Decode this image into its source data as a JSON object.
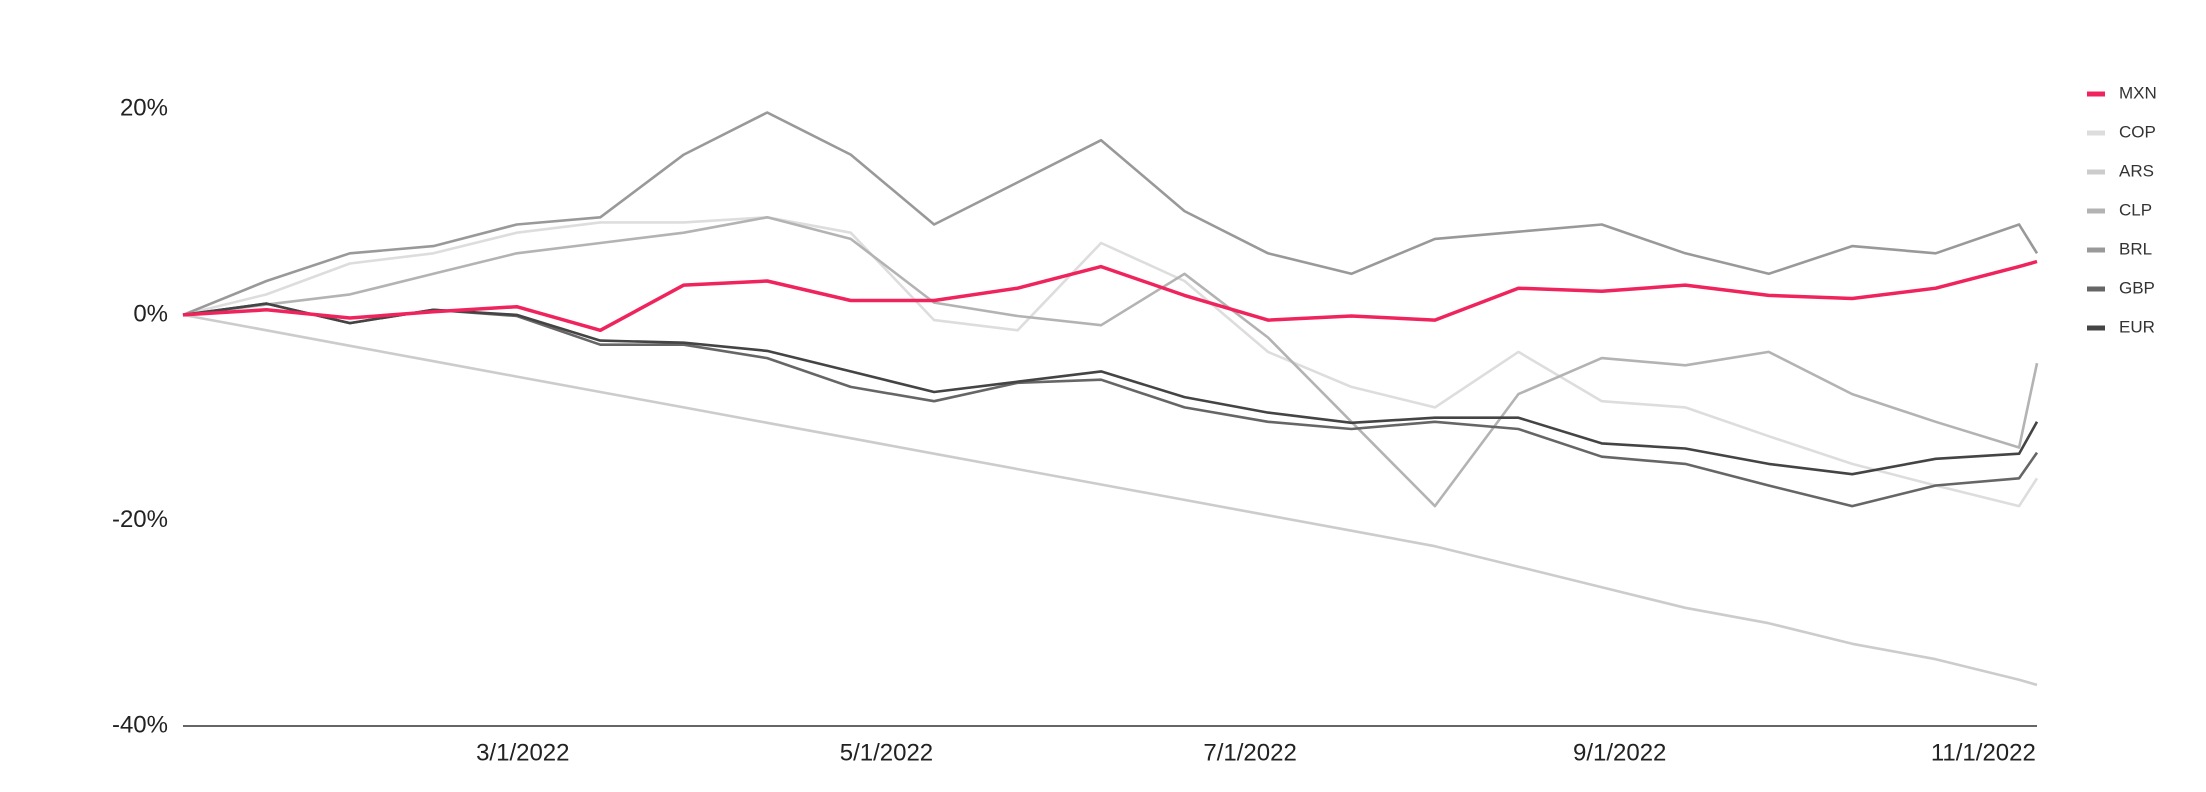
{
  "chart_data": {
    "type": "line",
    "x": [
      "1/3/2022",
      "1/17/2022",
      "1/31/2022",
      "2/14/2022",
      "2/28/2022",
      "3/14/2022",
      "3/28/2022",
      "4/11/2022",
      "4/25/2022",
      "5/9/2022",
      "5/23/2022",
      "6/6/2022",
      "6/20/2022",
      "7/4/2022",
      "7/18/2022",
      "8/1/2022",
      "8/15/2022",
      "8/29/2022",
      "9/12/2022",
      "9/26/2022",
      "10/10/2022",
      "10/24/2022",
      "11/7/2022",
      "11/10/2022"
    ],
    "xlim": [
      "1/3/2022",
      "11/10/2022"
    ],
    "xticks": [
      "3/1/2022",
      "5/1/2022",
      "7/1/2022",
      "9/1/2022",
      "11/1/2022"
    ],
    "ylim": [
      -40,
      25
    ],
    "yticks": [
      {
        "value": -40,
        "label": "-40%"
      },
      {
        "value": -20,
        "label": "-20%"
      },
      {
        "value": 0,
        "label": "0%"
      },
      {
        "value": 20,
        "label": "20%"
      }
    ],
    "grid": false,
    "legend": "right",
    "series": [
      {
        "name": "MXN",
        "color": "#f0245c",
        "values": [
          0,
          0.5,
          -0.3,
          0.3,
          0.8,
          -1.5,
          2.9,
          3.3,
          1.4,
          1.4,
          2.6,
          4.7,
          1.9,
          -0.5,
          -0.1,
          -0.5,
          2.6,
          2.3,
          2.9,
          1.9,
          1.6,
          2.6,
          4.7,
          5.2
        ]
      },
      {
        "name": "COP",
        "color": "#dddddd",
        "values": [
          0,
          2,
          5,
          6,
          8,
          9,
          9,
          9.5,
          8,
          -0.5,
          -1.5,
          7,
          3.3,
          -3.6,
          -7,
          -9,
          -3.6,
          -8.4,
          -9,
          -11.8,
          -14.5,
          -16.6,
          -18.6,
          -15.9
        ]
      },
      {
        "name": "ARS",
        "color": "#cccccc",
        "values": [
          0,
          -1.5,
          -3,
          -4.5,
          -6,
          -7.5,
          -9,
          -10.5,
          -12,
          -13.5,
          -15,
          -16.5,
          -18,
          -19.5,
          -21,
          -22.5,
          -24.5,
          -26.5,
          -28.5,
          -30,
          -32,
          -33.5,
          -35.5,
          -36
        ]
      },
      {
        "name": "CLP",
        "color": "#b3b3b3",
        "values": [
          0,
          1,
          2,
          4,
          6,
          7,
          8,
          9.5,
          7.4,
          1.2,
          -0.1,
          -1,
          4,
          -2.2,
          -10.4,
          -18.6,
          -7.7,
          -4.2,
          -4.9,
          -3.6,
          -7.7,
          -10.4,
          -12.9,
          -4.7
        ]
      },
      {
        "name": "BRL",
        "color": "#999999",
        "values": [
          0,
          3.3,
          6,
          6.7,
          8.8,
          9.5,
          15.6,
          19.7,
          15.6,
          8.8,
          12.9,
          17,
          10.1,
          6,
          4,
          7.4,
          8.1,
          8.8,
          6,
          4,
          6.7,
          6,
          8.8,
          6
        ]
      },
      {
        "name": "GBP",
        "color": "#666666",
        "values": [
          0,
          1.1,
          -0.8,
          0.5,
          -0.1,
          -2.9,
          -2.9,
          -4.2,
          -7,
          -8.4,
          -6.6,
          -6.3,
          -9,
          -10.4,
          -11.1,
          -10.4,
          -11.1,
          -13.8,
          -14.5,
          -16.6,
          -18.6,
          -16.6,
          -15.9,
          -13.4
        ]
      },
      {
        "name": "EUR",
        "color": "#444444",
        "values": [
          0,
          1.1,
          -0.8,
          0.5,
          0,
          -2.5,
          -2.7,
          -3.5,
          -5.5,
          -7.5,
          -6.5,
          -5.5,
          -8,
          -9.5,
          -10.5,
          -10,
          -10,
          -12.5,
          -13,
          -14.5,
          -15.5,
          -14,
          -13.5,
          -10.4
        ]
      }
    ]
  }
}
